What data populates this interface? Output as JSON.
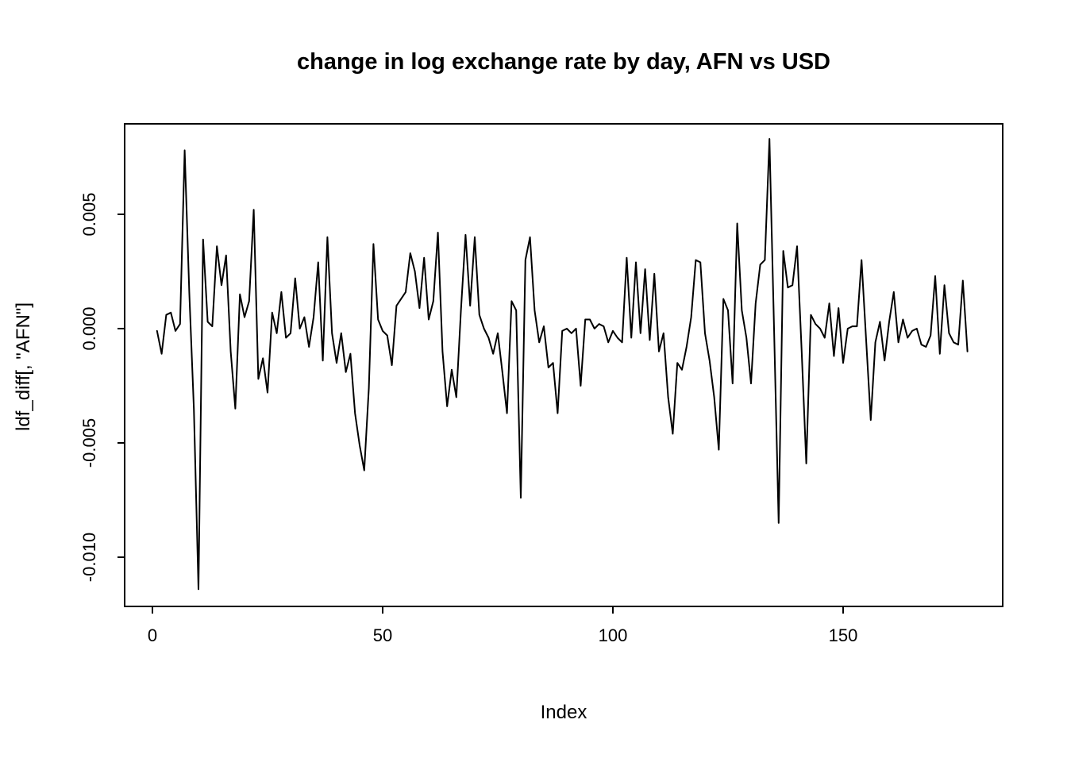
{
  "title": "change in log exchange rate by day, AFN vs USD",
  "colors": {
    "line": "#000000",
    "axis": "#000000",
    "background": "#ffffff"
  },
  "x_axis": {
    "label": "Index",
    "tick_labels": [
      "0",
      "50",
      "100",
      "150"
    ],
    "tick_values": [
      0,
      50,
      100,
      150
    ]
  },
  "y_axis": {
    "label": "ldf_diff[, \"AFN\"]",
    "tick_labels": [
      "0.005",
      "0.000",
      "-0.005",
      "-0.010"
    ],
    "tick_values": [
      0.005,
      0.0,
      -0.005,
      -0.01
    ]
  },
  "chart_data": {
    "type": "line",
    "title": "change in log exchange rate by day, AFN vs USD",
    "xlabel": "Index",
    "ylabel": "ldf_diff[, \"AFN\"]",
    "x_start": 1,
    "xlim": [
      -6,
      184
    ],
    "ylim": [
      -0.01215,
      0.00896
    ],
    "grid": false,
    "legend_position": "none",
    "series_color": "#000000",
    "values": [
      -0.0001,
      -0.0011,
      0.0006,
      0.0007,
      -0.0001,
      0.0002,
      0.0078,
      0.0016,
      -0.0035,
      -0.0114,
      0.0039,
      0.0003,
      0.0001,
      0.0036,
      0.0019,
      0.0032,
      -0.001,
      -0.0035,
      0.0015,
      0.0005,
      0.0012,
      0.0052,
      -0.0022,
      -0.0013,
      -0.0028,
      0.0007,
      -0.0002,
      0.0016,
      -0.0004,
      -0.0002,
      0.0022,
      0.0,
      0.0005,
      -0.0008,
      0.0005,
      0.0029,
      -0.0014,
      0.004,
      -0.0002,
      -0.0015,
      -0.0002,
      -0.0019,
      -0.0011,
      -0.0037,
      -0.0051,
      -0.0062,
      -0.0026,
      0.0037,
      0.0004,
      -0.0001,
      -0.0003,
      -0.0016,
      0.001,
      0.0013,
      0.0016,
      0.0033,
      0.0025,
      0.0009,
      0.0031,
      0.0004,
      0.0012,
      0.0042,
      -0.001,
      -0.0034,
      -0.0018,
      -0.003,
      0.0008,
      0.0041,
      0.001,
      0.004,
      0.0006,
      0.0,
      -0.0004,
      -0.0011,
      -0.0002,
      -0.0019,
      -0.0037,
      0.0012,
      0.0008,
      -0.0074,
      0.003,
      0.004,
      0.0008,
      -0.0006,
      0.0001,
      -0.0017,
      -0.0015,
      -0.0037,
      -0.0001,
      0.0,
      -0.0002,
      0.0,
      -0.0025,
      0.0004,
      0.0004,
      0.0,
      0.0002,
      0.0001,
      -0.0006,
      -0.0001,
      -0.0004,
      -0.0006,
      0.0031,
      -0.0004,
      0.0029,
      -0.0002,
      0.0026,
      -0.0005,
      0.0024,
      -0.001,
      -0.0002,
      -0.003,
      -0.0046,
      -0.0015,
      -0.0018,
      -0.0008,
      0.0005,
      0.003,
      0.0029,
      -0.0002,
      -0.0014,
      -0.003,
      -0.0053,
      0.0013,
      0.0008,
      -0.0024,
      0.0046,
      0.0008,
      -0.0004,
      -0.0024,
      0.0011,
      0.0028,
      0.003,
      0.0083,
      0.0,
      -0.0085,
      0.0034,
      0.0018,
      0.0019,
      0.0036,
      -0.001,
      -0.0059,
      0.0006,
      0.0002,
      0.0,
      -0.0004,
      0.0011,
      -0.0012,
      0.0009,
      -0.0015,
      0.0,
      0.0001,
      0.0001,
      0.003,
      -0.0005,
      -0.004,
      -0.0006,
      0.0003,
      -0.0014,
      0.0003,
      0.0016,
      -0.0006,
      0.0004,
      -0.0004,
      -0.0001,
      0.0,
      -0.0007,
      -0.0008,
      -0.0003,
      0.0023,
      -0.0011,
      0.0019,
      -0.0002,
      -0.0006,
      -0.0007,
      0.0021,
      -0.001
    ]
  }
}
